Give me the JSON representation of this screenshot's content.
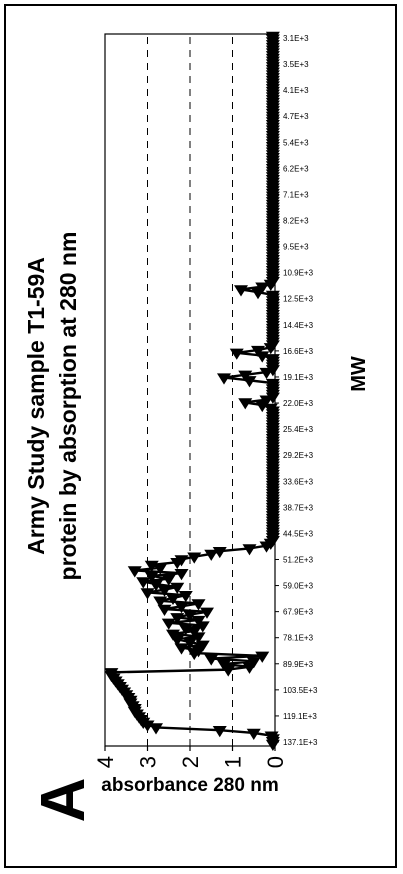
{
  "panel_label": "A",
  "colors": {
    "series": "#000000",
    "grid": "#000000",
    "background": "#ffffff"
  },
  "chart_data": {
    "type": "line",
    "title_lines": [
      "Army Study sample T1-59A",
      "protein by absorption at 280 nm"
    ],
    "xlabel": "MW",
    "ylabel": "absorbance 280 nm",
    "ylim": [
      0,
      4
    ],
    "yticks": [
      0,
      1,
      2,
      3,
      4
    ],
    "grid": "dashed horizontal",
    "legend": "none",
    "marker": "filled-triangle",
    "x_tick_labels": [
      "137.1E+3",
      "119.1E+3",
      "103.5E+3",
      "89.9E+3",
      "78.1E+3",
      "67.9E+3",
      "59.0E+3",
      "51.2E+3",
      "44.5E+3",
      "38.7E+3",
      "33.6E+3",
      "29.2E+3",
      "25.4E+3",
      "22.0E+3",
      "19.1E+3",
      "16.6E+3",
      "14.4E+3",
      "12.5E+3",
      "10.9E+3",
      "9.5E+3",
      "8.2E+3",
      "7.1E+3",
      "6.2E+3",
      "5.4E+3",
      "4.7E+3",
      "4.1E+3",
      "3.5E+3",
      "3.1E+3"
    ],
    "series": [
      {
        "values": [
          0.05,
          0.05,
          0.05,
          0.08,
          0.5,
          1.3,
          2.8,
          3.0,
          3.1,
          3.15,
          3.2,
          3.25,
          3.3,
          3.3,
          3.35,
          3.4,
          3.4,
          3.45,
          3.5,
          3.55,
          3.6,
          3.65,
          3.7,
          3.75,
          3.8,
          3.85,
          3.85,
          1.1,
          0.6,
          1.2,
          0.5,
          1.5,
          0.3,
          1.9,
          1.8,
          2.2,
          1.7,
          2.0,
          2.3,
          1.8,
          2.4,
          1.9,
          2.1,
          1.7,
          2.5,
          1.8,
          2.3,
          2.0,
          1.6,
          2.6,
          2.2,
          1.8,
          2.7,
          2.4,
          2.1,
          3.0,
          2.6,
          2.3,
          2.8,
          3.1,
          2.5,
          2.9,
          2.2,
          3.3,
          2.7,
          2.9,
          2.3,
          2.2,
          1.9,
          1.5,
          1.3,
          0.6,
          0.2,
          0.1,
          0.05,
          0.05,
          0.05,
          0.05,
          0.05,
          0.05,
          0.05,
          0.05,
          0.05,
          0.05,
          0.05,
          0.05,
          0.05,
          0.05,
          0.05,
          0.05,
          0.05,
          0.05,
          0.05,
          0.05,
          0.05,
          0.05,
          0.05,
          0.05,
          0.05,
          0.05,
          0.05,
          0.05,
          0.05,
          0.05,
          0.05,
          0.05,
          0.05,
          0.05,
          0.05,
          0.05,
          0.05,
          0.05,
          0.05,
          0.05,
          0.05,
          0.05,
          0.05,
          0.05,
          0.05,
          0.05,
          0.05,
          0.05,
          0.1,
          0.3,
          0.7,
          0.2,
          0.05,
          0.05,
          0.05,
          0.05,
          0.05,
          0.05,
          0.6,
          1.2,
          0.7,
          0.2,
          0.05,
          0.05,
          0.05,
          0.05,
          0.05,
          0.3,
          0.9,
          0.4,
          0.1,
          0.05,
          0.05,
          0.05,
          0.05,
          0.05,
          0.05,
          0.05,
          0.05,
          0.05,
          0.05,
          0.05,
          0.05,
          0.05,
          0.05,
          0.05,
          0.05,
          0.05,
          0.05,
          0.05,
          0.4,
          0.8,
          0.3,
          0.1,
          0.05,
          0.05,
          0.05,
          0.05,
          0.05,
          0.05,
          0.05,
          0.05,
          0.05,
          0.05,
          0.05,
          0.05,
          0.05,
          0.05,
          0.05,
          0.05,
          0.05,
          0.05,
          0.05,
          0.05,
          0.05,
          0.05,
          0.05,
          0.05,
          0.05,
          0.05,
          0.05,
          0.05,
          0.05,
          0.05,
          0.05,
          0.05,
          0.05,
          0.05,
          0.05,
          0.05,
          0.05,
          0.05,
          0.05,
          0.05,
          0.05,
          0.05,
          0.05,
          0.05,
          0.05,
          0.05,
          0.05,
          0.05,
          0.05,
          0.05,
          0.05,
          0.05,
          0.05,
          0.05,
          0.05,
          0.05,
          0.05,
          0.05,
          0.05,
          0.05,
          0.05,
          0.05,
          0.05,
          0.05,
          0.05,
          0.05,
          0.05,
          0.05,
          0.05,
          0.05,
          0.05,
          0.05,
          0.05,
          0.05,
          0.05,
          0.05,
          0.05,
          0.05,
          0.05,
          0.05,
          0.05,
          0.05,
          0.05,
          0.05,
          0.05,
          0.05,
          0.05,
          0.05,
          0.05,
          0.05
        ]
      }
    ]
  }
}
